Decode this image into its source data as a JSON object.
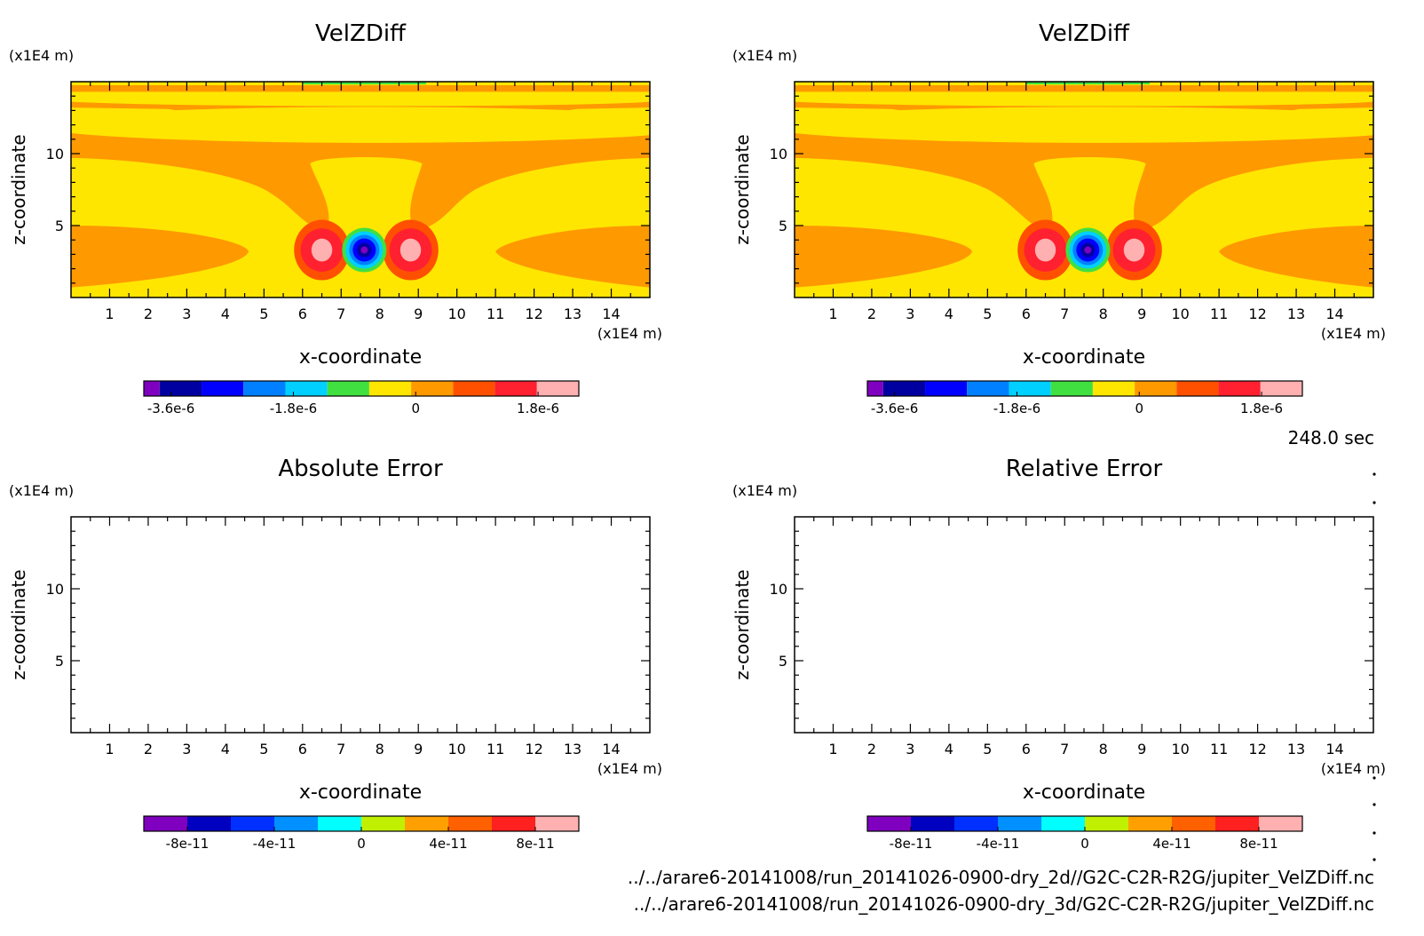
{
  "time_label": "248.0 sec",
  "file_paths": [
    "../../arare6-20141008/run_20141026-0900-dry_2d//G2C-C2R-R2G/jupiter_VelZDiff.nc",
    "../../arare6-20141008/run_20141026-0900-dry_3d/G2C-C2R-R2G/jupiter_VelZDiff.nc"
  ],
  "chart_data": [
    {
      "type": "heatmap",
      "title": "VelZDiff",
      "xlabel": "x-coordinate",
      "ylabel": "z-coordinate",
      "x_unit": "(x1E4 m)",
      "y_unit": "(x1E4 m)",
      "xlim": [
        0,
        15
      ],
      "ylim": [
        0,
        15
      ],
      "x_ticks": [
        1,
        2,
        3,
        4,
        5,
        6,
        7,
        8,
        9,
        10,
        11,
        12,
        13,
        14
      ],
      "y_ticks": [
        5,
        10
      ],
      "colorbar_colors": [
        "#8000c0",
        "#0000a0",
        "#0000ff",
        "#0080ff",
        "#00d0ff",
        "#40e040",
        "#ffe600",
        "#ff9900",
        "#ff5000",
        "#ff2030",
        "#ffb0b0"
      ],
      "colorbar_tick_labels": [
        "-3.6e-6",
        "-1.8e-6",
        "0",
        "1.8e-6"
      ],
      "colorbar_tick_values": [
        -3.6e-06,
        -1.8e-06,
        0,
        1.8e-06
      ],
      "colorbar_range": [
        -4e-06,
        2.4e-06
      ],
      "field": "filled"
    },
    {
      "type": "heatmap",
      "title": "VelZDiff",
      "xlabel": "x-coordinate",
      "ylabel": "z-coordinate",
      "x_unit": "(x1E4 m)",
      "y_unit": "(x1E4 m)",
      "xlim": [
        0,
        15
      ],
      "ylim": [
        0,
        15
      ],
      "x_ticks": [
        1,
        2,
        3,
        4,
        5,
        6,
        7,
        8,
        9,
        10,
        11,
        12,
        13,
        14
      ],
      "y_ticks": [
        5,
        10
      ],
      "colorbar_colors": [
        "#8000c0",
        "#0000a0",
        "#0000ff",
        "#0080ff",
        "#00d0ff",
        "#40e040",
        "#ffe600",
        "#ff9900",
        "#ff5000",
        "#ff2030",
        "#ffb0b0"
      ],
      "colorbar_tick_labels": [
        "-3.6e-6",
        "-1.8e-6",
        "0",
        "1.8e-6"
      ],
      "colorbar_tick_values": [
        -3.6e-06,
        -1.8e-06,
        0,
        1.8e-06
      ],
      "colorbar_range": [
        -4e-06,
        2.4e-06
      ],
      "field": "filled"
    },
    {
      "type": "heatmap",
      "title": "Absolute Error",
      "xlabel": "x-coordinate",
      "ylabel": "z-coordinate",
      "x_unit": "(x1E4 m)",
      "y_unit": "(x1E4 m)",
      "xlim": [
        0,
        15
      ],
      "ylim": [
        0,
        15
      ],
      "x_ticks": [
        1,
        2,
        3,
        4,
        5,
        6,
        7,
        8,
        9,
        10,
        11,
        12,
        13,
        14
      ],
      "y_ticks": [
        5,
        10
      ],
      "colorbar_colors": [
        "#8000c0",
        "#0000c0",
        "#0030ff",
        "#0090ff",
        "#00ffff",
        "#c0f000",
        "#ffa000",
        "#ff6000",
        "#ff2020",
        "#ffb0b0"
      ],
      "colorbar_tick_labels": [
        "-8e-11",
        "-4e-11",
        "0",
        "4e-11",
        "8e-11"
      ],
      "colorbar_tick_values": [
        -8e-11,
        -4e-11,
        0,
        4e-11,
        8e-11
      ],
      "colorbar_range": [
        -1e-10,
        1e-10
      ],
      "field": "empty"
    },
    {
      "type": "heatmap",
      "title": "Relative Error",
      "xlabel": "x-coordinate",
      "ylabel": "z-coordinate",
      "x_unit": "(x1E4 m)",
      "y_unit": "(x1E4 m)",
      "xlim": [
        0,
        15
      ],
      "ylim": [
        0,
        15
      ],
      "x_ticks": [
        1,
        2,
        3,
        4,
        5,
        6,
        7,
        8,
        9,
        10,
        11,
        12,
        13,
        14
      ],
      "y_ticks": [
        5,
        10
      ],
      "colorbar_colors": [
        "#8000c0",
        "#0000c0",
        "#0030ff",
        "#0090ff",
        "#00ffff",
        "#c0f000",
        "#ffa000",
        "#ff6000",
        "#ff2020",
        "#ffb0b0"
      ],
      "colorbar_tick_labels": [
        "-8e-11",
        "-4e-11",
        "0",
        "4e-11",
        "8e-11"
      ],
      "colorbar_tick_values": [
        -8e-11,
        -4e-11,
        0,
        4e-11,
        8e-11
      ],
      "colorbar_range": [
        -1e-10,
        1e-10
      ],
      "field": "empty"
    }
  ]
}
